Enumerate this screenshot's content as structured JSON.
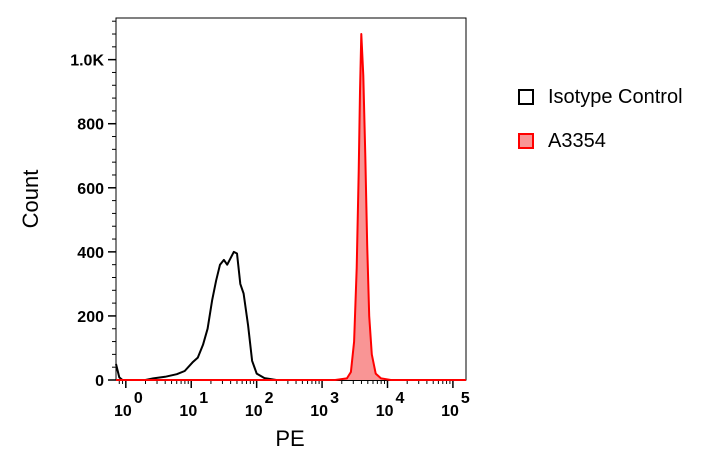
{
  "chart_data": {
    "type": "area",
    "xlabel": "PE",
    "ylabel": "Count",
    "xscale": "log",
    "x_decades": [
      0,
      1,
      2,
      3,
      4,
      5
    ],
    "x_tick_base": "10",
    "y_ticks": [
      {
        "value": 0,
        "label": "0"
      },
      {
        "value": 200,
        "label": "200"
      },
      {
        "value": 400,
        "label": "400"
      },
      {
        "value": 600,
        "label": "600"
      },
      {
        "value": 800,
        "label": "800"
      },
      {
        "value": 1000,
        "label": "1.0K"
      }
    ],
    "ylim": [
      0,
      1130
    ],
    "grid": false,
    "legend_position": "right",
    "series": [
      {
        "name": "Isotype Control",
        "color": "#000000",
        "fill": "none",
        "points": [
          [
            -0.15,
            50
          ],
          [
            -0.1,
            8
          ],
          [
            -0.05,
            0
          ],
          [
            0.2,
            0
          ],
          [
            0.3,
            0
          ],
          [
            0.42,
            5
          ],
          [
            0.6,
            10
          ],
          [
            0.78,
            18
          ],
          [
            0.9,
            28
          ],
          [
            1.02,
            55
          ],
          [
            1.1,
            70
          ],
          [
            1.18,
            110
          ],
          [
            1.25,
            160
          ],
          [
            1.32,
            250
          ],
          [
            1.38,
            310
          ],
          [
            1.44,
            360
          ],
          [
            1.5,
            375
          ],
          [
            1.55,
            360
          ],
          [
            1.6,
            380
          ],
          [
            1.65,
            400
          ],
          [
            1.7,
            395
          ],
          [
            1.75,
            300
          ],
          [
            1.8,
            270
          ],
          [
            1.87,
            170
          ],
          [
            1.93,
            60
          ],
          [
            2.0,
            20
          ],
          [
            2.12,
            6
          ],
          [
            2.3,
            0
          ],
          [
            2.6,
            0
          ],
          [
            3.0,
            0
          ],
          [
            3.5,
            0
          ],
          [
            4.0,
            0
          ],
          [
            4.5,
            0
          ],
          [
            5.2,
            0
          ]
        ]
      },
      {
        "name": "A3354",
        "color": "#ff0000",
        "fill": "#f99595",
        "points": [
          [
            -0.15,
            0
          ],
          [
            2.0,
            0
          ],
          [
            2.5,
            0
          ],
          [
            3.0,
            0
          ],
          [
            3.2,
            0
          ],
          [
            3.38,
            5
          ],
          [
            3.44,
            25
          ],
          [
            3.49,
            120
          ],
          [
            3.53,
            350
          ],
          [
            3.56,
            650
          ],
          [
            3.58,
            900
          ],
          [
            3.6,
            1080
          ],
          [
            3.63,
            950
          ],
          [
            3.66,
            700
          ],
          [
            3.69,
            420
          ],
          [
            3.72,
            200
          ],
          [
            3.76,
            80
          ],
          [
            3.82,
            20
          ],
          [
            3.9,
            5
          ],
          [
            4.05,
            0
          ],
          [
            5.2,
            0
          ]
        ]
      }
    ]
  }
}
